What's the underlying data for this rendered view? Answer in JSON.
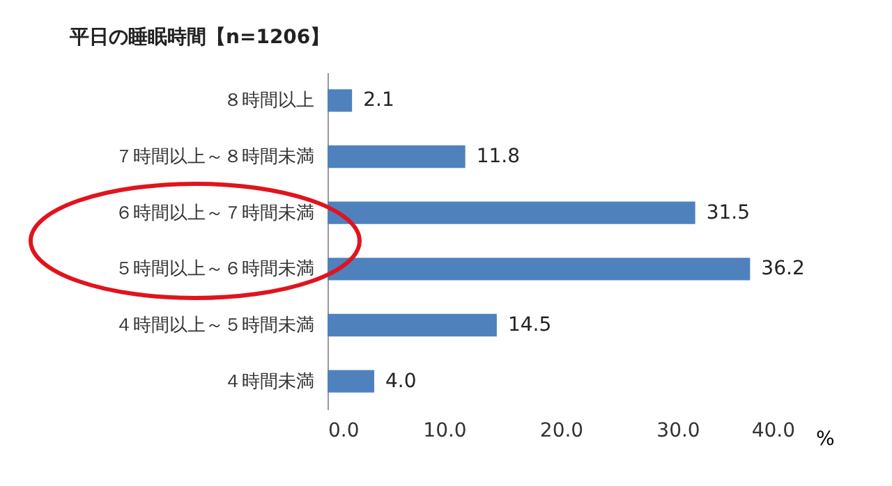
{
  "chart_data": {
    "type": "bar",
    "orientation": "horizontal",
    "title": "平日の睡眠時間【n=1206】",
    "xlabel": "%",
    "categories": [
      "８時間以上",
      "７時間以上～８時間未満",
      "６時間以上～７時間未満",
      "５時間以上～６時間未満",
      "４時間以上～５時間未満",
      "４時間未満"
    ],
    "values": [
      2.1,
      11.8,
      31.5,
      36.2,
      14.5,
      4.0
    ],
    "value_labels": [
      "2.1",
      "11.8",
      "31.5",
      "36.2",
      "14.5",
      "4.0"
    ],
    "color": "#4f81bd",
    "xlim": [
      0,
      40
    ],
    "xticks": [
      {
        "value": 0,
        "label": "0.0"
      },
      {
        "value": 10,
        "label": "10.0"
      },
      {
        "value": 20,
        "label": "20.0"
      },
      {
        "value": 30,
        "label": "30.0"
      },
      {
        "value": 40,
        "label": "40.0"
      }
    ],
    "grid": false
  }
}
